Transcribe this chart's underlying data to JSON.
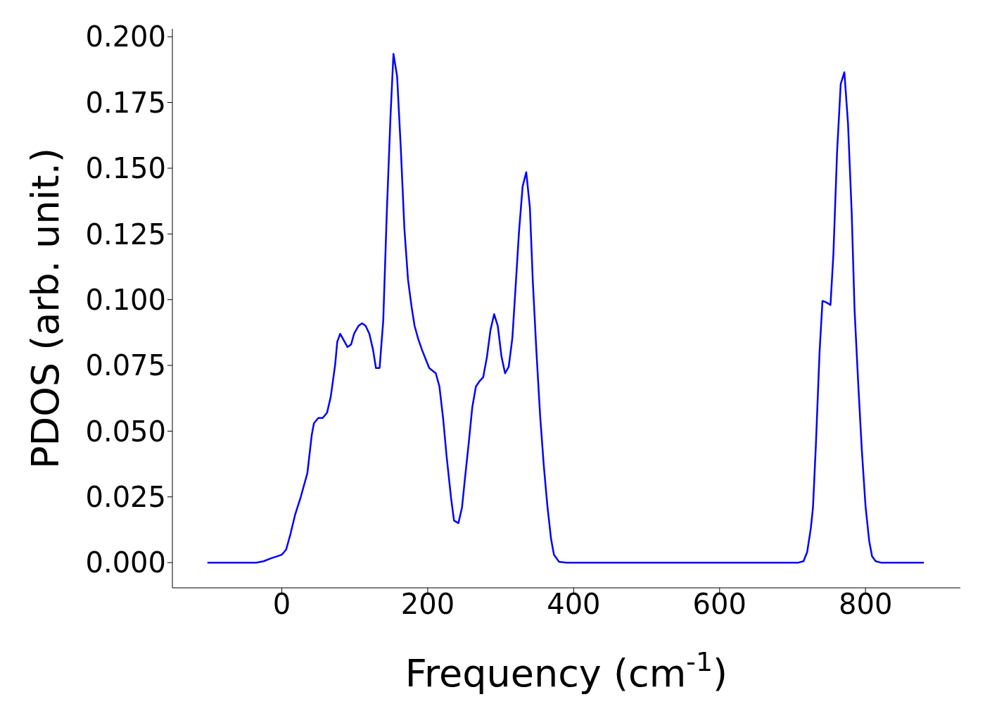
{
  "chart_data": {
    "type": "line",
    "xlabel": "Frequency (cm$^{-1}$)",
    "ylabel": "PDOS (arb. unit.)",
    "xlim": [
      -150,
      930
    ],
    "ylim": [
      -0.0096,
      0.203
    ],
    "xticks": [
      0,
      200,
      400,
      600,
      800
    ],
    "yticks": [
      {
        "value": 0,
        "label": "0.000"
      },
      {
        "value": 0.025,
        "label": "0.025"
      },
      {
        "value": 0.05,
        "label": "0.050"
      },
      {
        "value": 0.075,
        "label": "0.075"
      },
      {
        "value": 0.1,
        "label": "0.100"
      },
      {
        "value": 0.125,
        "label": "0.125"
      },
      {
        "value": 0.15,
        "label": "0.150"
      },
      {
        "value": 0.175,
        "label": "0.175"
      },
      {
        "value": 0.2,
        "label": "0.200"
      }
    ],
    "grid": false,
    "legend": false,
    "marker": "none",
    "line_style": "solid",
    "series": [
      {
        "color": "#0000ff",
        "x": [
          -102,
          -35,
          -25,
          -15,
          -6,
          0,
          6,
          12,
          18,
          26,
          35,
          41,
          44,
          50,
          56,
          62,
          67,
          73,
          76,
          80,
          86,
          90,
          95,
          99,
          105,
          110,
          115,
          120,
          125,
          129,
          134,
          139,
          144,
          149,
          153,
          158,
          163,
          168,
          173,
          178,
          182,
          187,
          192,
          197,
          202,
          211,
          216,
          221,
          226,
          232,
          236,
          242,
          247,
          251,
          256,
          261,
          266,
          271,
          276,
          281,
          286,
          291,
          296,
          301,
          306,
          311,
          316,
          320,
          325,
          330,
          335,
          340,
          344,
          349,
          354,
          359,
          364,
          369,
          373,
          380,
          390,
          708,
          715,
          720,
          725,
          728,
          732,
          737,
          741,
          746,
          752,
          756,
          761,
          766,
          771,
          776,
          781,
          785,
          790,
          795,
          800,
          805,
          809,
          814,
          821,
          880
        ],
        "values": [
          0,
          0,
          0.0005,
          0.0016,
          0.0024,
          0.003,
          0.005,
          0.011,
          0.018,
          0.025,
          0.034,
          0.0485,
          0.053,
          0.055,
          0.055,
          0.057,
          0.063,
          0.075,
          0.084,
          0.087,
          0.084,
          0.082,
          0.083,
          0.087,
          0.09,
          0.091,
          0.09,
          0.087,
          0.081,
          0.074,
          0.074,
          0.092,
          0.134,
          0.17,
          0.1935,
          0.185,
          0.158,
          0.127,
          0.1075,
          0.097,
          0.09,
          0.085,
          0.081,
          0.0775,
          0.074,
          0.072,
          0.067,
          0.055,
          0.04,
          0.0245,
          0.016,
          0.015,
          0.021,
          0.032,
          0.045,
          0.059,
          0.067,
          0.069,
          0.0705,
          0.078,
          0.0885,
          0.0945,
          0.09,
          0.0785,
          0.072,
          0.0745,
          0.0855,
          0.103,
          0.1255,
          0.143,
          0.1485,
          0.135,
          0.107,
          0.08,
          0.056,
          0.037,
          0.0215,
          0.009,
          0.003,
          0.0003,
          0,
          0,
          0.0005,
          0.004,
          0.013,
          0.021,
          0.045,
          0.08,
          0.0995,
          0.099,
          0.098,
          0.1175,
          0.156,
          0.182,
          0.1865,
          0.167,
          0.1335,
          0.096,
          0.068,
          0.0425,
          0.0215,
          0.0083,
          0.0024,
          0.0005,
          0,
          0
        ]
      }
    ]
  }
}
